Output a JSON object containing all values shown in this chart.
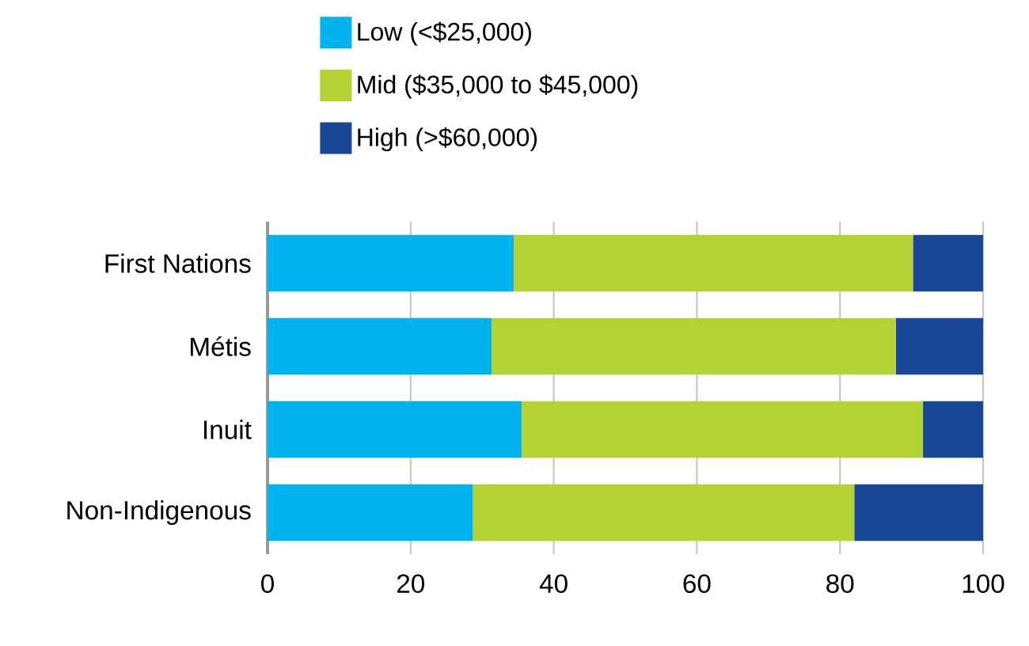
{
  "chart_data": {
    "type": "bar",
    "orientation": "horizontal",
    "stacked": true,
    "categories": [
      "First Nations",
      "Métis",
      "Inuit",
      "Non-Indigenous"
    ],
    "series": [
      {
        "name": "Low (<$25,000)",
        "color": "#00b2ee",
        "values": [
          34.4,
          31.3,
          35.5,
          28.7
        ]
      },
      {
        "name": "Mid ($35,000 to $45,000)",
        "color": "#b3d335",
        "values": [
          55.8,
          56.5,
          56.1,
          53.3
        ]
      },
      {
        "name": "High (>$60,000)",
        "color": "#1a4795",
        "values": [
          9.8,
          12.2,
          8.4,
          18.0
        ]
      }
    ],
    "xlim": [
      0,
      100
    ],
    "xticks": [
      0,
      20,
      40,
      60,
      80,
      100
    ],
    "grid": "x",
    "legend": "top"
  }
}
